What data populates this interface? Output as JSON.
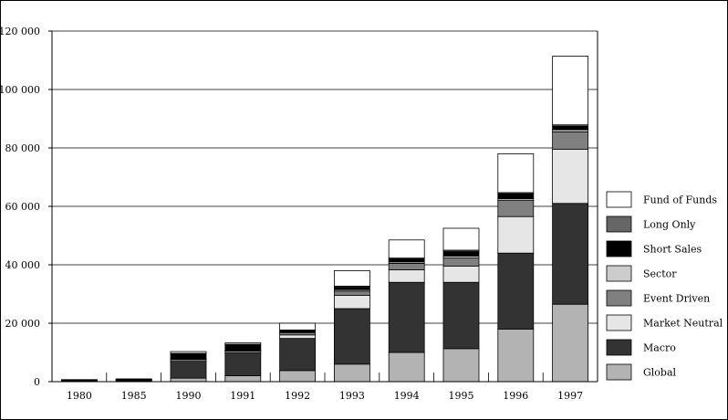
{
  "chart_data": {
    "type": "bar",
    "stacked": true,
    "title": "",
    "xlabel": "",
    "ylabel": "",
    "categories": [
      "1980",
      "1985",
      "1990",
      "1991",
      "1992",
      "1993",
      "1994",
      "1995",
      "1996",
      "1997"
    ],
    "ylim": [
      0,
      120000
    ],
    "yticks": [
      0,
      20000,
      40000,
      60000,
      80000,
      100000,
      120000
    ],
    "ytick_labels": [
      "0",
      "20 000",
      "40 000",
      "60 000",
      "80 000",
      "100 000",
      "120 000"
    ],
    "grid": "horizontal",
    "legend_position": "right",
    "series": [
      {
        "name": "Global",
        "color": "#b3b3b3",
        "values": [
          200,
          200,
          1200,
          2000,
          3800,
          6000,
          10000,
          11300,
          18000,
          26500
        ]
      },
      {
        "name": "Macro",
        "color": "#333333",
        "values": [
          300,
          400,
          5800,
          8000,
          11000,
          19000,
          24000,
          22700,
          26000,
          34500
        ]
      },
      {
        "name": "Market Neutral",
        "color": "#e6e6e6",
        "values": [
          50,
          50,
          500,
          500,
          1200,
          4500,
          4300,
          5500,
          12500,
          18500
        ]
      },
      {
        "name": "Event Driven",
        "color": "#808080",
        "values": [
          50,
          50,
          200,
          200,
          700,
          1500,
          2200,
          2800,
          5500,
          6000
        ]
      },
      {
        "name": "Sector",
        "color": "#cccccc",
        "values": [
          50,
          50,
          200,
          100,
          300,
          500,
          500,
          700,
          600,
          700
        ]
      },
      {
        "name": "Short Sales",
        "color": "#000000",
        "values": [
          50,
          100,
          1800,
          2000,
          400,
          800,
          1000,
          1500,
          1700,
          1200
        ]
      },
      {
        "name": "Long Only",
        "color": "#666666",
        "values": [
          0,
          0,
          0,
          0,
          300,
          400,
          300,
          500,
          400,
          500
        ]
      },
      {
        "name": "Fund of Funds",
        "color": "#ffffff",
        "values": [
          0,
          100,
          600,
          500,
          2300,
          5300,
          6200,
          7500,
          13300,
          23500
        ]
      }
    ]
  }
}
